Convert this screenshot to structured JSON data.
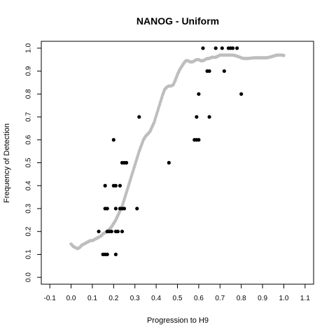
{
  "chart_data": {
    "type": "scatter",
    "title": "NANOG - Uniform",
    "xlabel": "Progression to H9",
    "ylabel": "Frequency of Detection",
    "xlim": [
      -0.14,
      1.14
    ],
    "ylim": [
      -0.03,
      1.03
    ],
    "xticks": [
      "-0.1",
      "0.0",
      "0.1",
      "0.2",
      "0.3",
      "0.4",
      "0.5",
      "0.6",
      "0.7",
      "0.8",
      "0.9",
      "1.0",
      "1.1"
    ],
    "yticks": [
      "0.0",
      "0.1",
      "0.2",
      "0.3",
      "0.4",
      "0.5",
      "0.6",
      "0.7",
      "0.8",
      "0.9",
      "1.0"
    ],
    "grid": false,
    "series": [
      {
        "color": "#bebebe",
        "curve": [
          [
            0.0,
            0.145
          ],
          [
            0.01,
            0.135
          ],
          [
            0.02,
            0.13
          ],
          [
            0.03,
            0.125
          ],
          [
            0.04,
            0.13
          ],
          [
            0.05,
            0.14
          ],
          [
            0.06,
            0.145
          ],
          [
            0.07,
            0.15
          ],
          [
            0.08,
            0.155
          ],
          [
            0.09,
            0.16
          ],
          [
            0.1,
            0.16
          ],
          [
            0.11,
            0.165
          ],
          [
            0.12,
            0.17
          ],
          [
            0.13,
            0.175
          ],
          [
            0.14,
            0.18
          ],
          [
            0.15,
            0.19
          ],
          [
            0.16,
            0.195
          ],
          [
            0.17,
            0.2
          ],
          [
            0.18,
            0.21
          ],
          [
            0.19,
            0.22
          ],
          [
            0.2,
            0.235
          ],
          [
            0.21,
            0.25
          ],
          [
            0.22,
            0.27
          ],
          [
            0.23,
            0.29
          ],
          [
            0.24,
            0.31
          ],
          [
            0.25,
            0.34
          ],
          [
            0.26,
            0.37
          ],
          [
            0.27,
            0.4
          ],
          [
            0.28,
            0.43
          ],
          [
            0.29,
            0.46
          ],
          [
            0.3,
            0.49
          ],
          [
            0.31,
            0.52
          ],
          [
            0.32,
            0.55
          ],
          [
            0.33,
            0.575
          ],
          [
            0.34,
            0.6
          ],
          [
            0.35,
            0.615
          ],
          [
            0.36,
            0.625
          ],
          [
            0.37,
            0.635
          ],
          [
            0.38,
            0.655
          ],
          [
            0.39,
            0.675
          ],
          [
            0.4,
            0.705
          ],
          [
            0.41,
            0.735
          ],
          [
            0.42,
            0.765
          ],
          [
            0.43,
            0.795
          ],
          [
            0.44,
            0.82
          ],
          [
            0.45,
            0.83
          ],
          [
            0.46,
            0.835
          ],
          [
            0.47,
            0.835
          ],
          [
            0.48,
            0.84
          ],
          [
            0.49,
            0.86
          ],
          [
            0.5,
            0.885
          ],
          [
            0.51,
            0.905
          ],
          [
            0.52,
            0.92
          ],
          [
            0.53,
            0.935
          ],
          [
            0.54,
            0.945
          ],
          [
            0.55,
            0.945
          ],
          [
            0.56,
            0.94
          ],
          [
            0.57,
            0.94
          ],
          [
            0.58,
            0.945
          ],
          [
            0.59,
            0.95
          ],
          [
            0.6,
            0.95
          ],
          [
            0.61,
            0.945
          ],
          [
            0.62,
            0.945
          ],
          [
            0.63,
            0.95
          ],
          [
            0.64,
            0.955
          ],
          [
            0.65,
            0.955
          ],
          [
            0.66,
            0.96
          ],
          [
            0.67,
            0.96
          ],
          [
            0.68,
            0.96
          ],
          [
            0.69,
            0.965
          ],
          [
            0.7,
            0.97
          ],
          [
            0.71,
            0.97
          ],
          [
            0.72,
            0.97
          ],
          [
            0.73,
            0.97
          ],
          [
            0.74,
            0.97
          ],
          [
            0.75,
            0.97
          ],
          [
            0.76,
            0.97
          ],
          [
            0.77,
            0.968
          ],
          [
            0.78,
            0.965
          ],
          [
            0.79,
            0.962
          ],
          [
            0.8,
            0.958
          ],
          [
            0.81,
            0.955
          ],
          [
            0.82,
            0.955
          ],
          [
            0.83,
            0.955
          ],
          [
            0.84,
            0.956
          ],
          [
            0.85,
            0.957
          ],
          [
            0.86,
            0.958
          ],
          [
            0.87,
            0.958
          ],
          [
            0.88,
            0.958
          ],
          [
            0.89,
            0.958
          ],
          [
            0.9,
            0.958
          ],
          [
            0.91,
            0.958
          ],
          [
            0.92,
            0.958
          ],
          [
            0.93,
            0.96
          ],
          [
            0.94,
            0.962
          ],
          [
            0.95,
            0.965
          ],
          [
            0.96,
            0.968
          ],
          [
            0.97,
            0.97
          ],
          [
            0.98,
            0.97
          ],
          [
            0.99,
            0.97
          ],
          [
            1.0,
            0.968
          ]
        ]
      },
      {
        "color": "#000000",
        "points": [
          [
            0.13,
            0.2
          ],
          [
            0.15,
            0.1
          ],
          [
            0.16,
            0.1
          ],
          [
            0.17,
            0.1
          ],
          [
            0.16,
            0.3
          ],
          [
            0.17,
            0.3
          ],
          [
            0.16,
            0.4
          ],
          [
            0.17,
            0.2
          ],
          [
            0.18,
            0.2
          ],
          [
            0.19,
            0.2
          ],
          [
            0.2,
            0.6
          ],
          [
            0.2,
            0.4
          ],
          [
            0.21,
            0.4
          ],
          [
            0.21,
            0.3
          ],
          [
            0.21,
            0.2
          ],
          [
            0.22,
            0.2
          ],
          [
            0.21,
            0.1
          ],
          [
            0.23,
            0.4
          ],
          [
            0.23,
            0.3
          ],
          [
            0.24,
            0.3
          ],
          [
            0.24,
            0.2
          ],
          [
            0.24,
            0.5
          ],
          [
            0.25,
            0.3
          ],
          [
            0.25,
            0.5
          ],
          [
            0.26,
            0.5
          ],
          [
            0.31,
            0.3
          ],
          [
            0.32,
            0.7
          ],
          [
            0.46,
            0.5
          ],
          [
            0.58,
            0.6
          ],
          [
            0.59,
            0.6
          ],
          [
            0.6,
            0.6
          ],
          [
            0.59,
            0.7
          ],
          [
            0.6,
            0.8
          ],
          [
            0.62,
            1.0
          ],
          [
            0.64,
            0.9
          ],
          [
            0.65,
            0.9
          ],
          [
            0.65,
            0.7
          ],
          [
            0.68,
            1.0
          ],
          [
            0.71,
            1.0
          ],
          [
            0.72,
            0.9
          ],
          [
            0.74,
            1.0
          ],
          [
            0.75,
            1.0
          ],
          [
            0.76,
            1.0
          ],
          [
            0.78,
            1.0
          ],
          [
            0.8,
            0.8
          ]
        ]
      }
    ]
  }
}
